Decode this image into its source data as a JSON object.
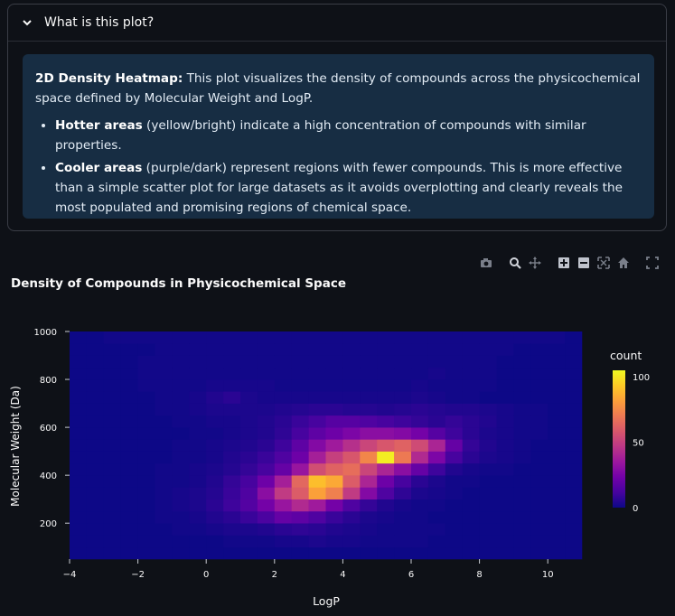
{
  "expander": {
    "title": "What is this plot?"
  },
  "info": {
    "intro_bold": "2D Density Heatmap:",
    "intro_text": " This plot visualizes the density of compounds across the physicochemical space defined by Molecular Weight and LogP.",
    "bullets": [
      {
        "bold": "Hotter areas",
        "text": " (yellow/bright) indicate a high concentration of compounds with similar properties."
      },
      {
        "bold": "Cooler areas",
        "text": " (purple/dark) represent regions with fewer compounds. This is more effective than a simple scatter plot for large datasets as it avoids overplotting and clearly reveals the most populated and promising regions of chemical space."
      }
    ]
  },
  "toolbar": [
    "camera-icon",
    "zoom-icon",
    "pan-icon",
    "zoom-in-icon",
    "zoom-out-icon",
    "autoscale-icon",
    "reset-axes-icon",
    "fullscreen-icon"
  ],
  "chart_data": {
    "type": "heatmap",
    "title": "Density of Compounds in Physicochemical Space",
    "xlabel": "LogP",
    "ylabel": "Molecular Weight (Da)",
    "xlim": [
      -4,
      11
    ],
    "ylim": [
      50,
      1000
    ],
    "xticks": [
      -4,
      -2,
      0,
      2,
      4,
      6,
      8,
      10
    ],
    "yticks": [
      200,
      400,
      600,
      800,
      1000
    ],
    "colorbar_title": "count",
    "colorbar_ticks": [
      0,
      50,
      100
    ],
    "zmax": 105,
    "colorscale": "plasma",
    "x_bin_start": -4,
    "x_bin_size": 0.5,
    "y_bin_start": 50,
    "y_bin_size": 50,
    "z": [
      [
        0,
        0,
        0,
        0,
        0,
        0,
        0,
        0,
        0,
        0,
        0,
        0,
        0,
        0,
        0,
        0,
        0,
        0,
        0,
        0,
        0,
        0,
        0,
        0,
        0,
        0,
        0,
        0,
        0,
        0
      ],
      [
        0,
        0,
        0,
        0,
        0,
        0,
        0,
        0,
        0,
        1,
        1,
        1,
        2,
        2,
        3,
        2,
        2,
        1,
        1,
        1,
        1,
        0,
        0,
        0,
        0,
        0,
        0,
        0,
        0,
        0
      ],
      [
        0,
        0,
        0,
        0,
        0,
        0,
        1,
        1,
        2,
        3,
        3,
        4,
        6,
        7,
        6,
        4,
        3,
        2,
        1,
        1,
        1,
        1,
        0,
        0,
        0,
        0,
        0,
        0,
        0,
        0
      ],
      [
        0,
        0,
        0,
        0,
        0,
        1,
        1,
        2,
        4,
        6,
        9,
        13,
        20,
        18,
        14,
        9,
        6,
        3,
        2,
        1,
        1,
        0,
        0,
        0,
        0,
        0,
        0,
        0,
        0,
        0
      ],
      [
        0,
        0,
        0,
        0,
        0,
        1,
        2,
        3,
        6,
        10,
        15,
        24,
        34,
        42,
        36,
        24,
        14,
        8,
        4,
        2,
        1,
        1,
        0,
        0,
        0,
        0,
        0,
        0,
        0,
        0
      ],
      [
        0,
        0,
        0,
        0,
        0,
        1,
        2,
        3,
        5,
        9,
        14,
        30,
        48,
        60,
        82,
        72,
        48,
        28,
        14,
        7,
        3,
        2,
        1,
        0,
        0,
        0,
        0,
        0,
        0,
        0
      ],
      [
        0,
        0,
        0,
        0,
        0,
        1,
        1,
        2,
        4,
        8,
        12,
        22,
        38,
        64,
        90,
        84,
        60,
        40,
        22,
        12,
        6,
        3,
        1,
        1,
        0,
        0,
        0,
        0,
        0,
        0
      ],
      [
        0,
        0,
        0,
        0,
        0,
        1,
        1,
        2,
        3,
        5,
        8,
        12,
        20,
        34,
        55,
        62,
        66,
        52,
        40,
        30,
        20,
        10,
        4,
        2,
        1,
        1,
        0,
        0,
        0,
        0
      ],
      [
        0,
        0,
        0,
        0,
        0,
        0,
        1,
        1,
        2,
        4,
        6,
        9,
        14,
        22,
        38,
        50,
        58,
        74,
        102,
        70,
        42,
        26,
        12,
        6,
        3,
        2,
        1,
        0,
        0,
        0
      ],
      [
        0,
        0,
        0,
        0,
        0,
        0,
        1,
        1,
        2,
        3,
        4,
        6,
        10,
        18,
        28,
        36,
        44,
        52,
        58,
        62,
        54,
        40,
        20,
        8,
        4,
        2,
        1,
        0,
        0,
        0
      ],
      [
        0,
        0,
        0,
        0,
        0,
        0,
        0,
        1,
        1,
        2,
        3,
        4,
        7,
        12,
        18,
        22,
        26,
        30,
        30,
        28,
        24,
        16,
        10,
        6,
        3,
        2,
        1,
        1,
        0,
        0
      ],
      [
        0,
        0,
        0,
        0,
        0,
        0,
        1,
        1,
        2,
        2,
        3,
        4,
        6,
        9,
        12,
        16,
        16,
        14,
        12,
        10,
        8,
        6,
        8,
        6,
        4,
        2,
        1,
        1,
        0,
        0
      ],
      [
        0,
        0,
        0,
        0,
        0,
        1,
        1,
        2,
        3,
        3,
        3,
        3,
        4,
        5,
        6,
        6,
        5,
        5,
        4,
        5,
        6,
        5,
        4,
        4,
        3,
        2,
        1,
        1,
        0,
        0
      ],
      [
        0,
        0,
        0,
        0,
        0,
        1,
        1,
        2,
        4,
        6,
        3,
        2,
        2,
        2,
        2,
        2,
        2,
        2,
        2,
        2,
        3,
        2,
        1,
        1,
        0,
        0,
        0,
        0,
        0,
        0
      ],
      [
        0,
        0,
        0,
        0,
        1,
        1,
        1,
        1,
        2,
        2,
        2,
        2,
        1,
        1,
        1,
        1,
        1,
        1,
        1,
        1,
        2,
        1,
        1,
        1,
        1,
        0,
        0,
        0,
        0,
        0
      ],
      [
        0,
        0,
        0,
        0,
        1,
        1,
        1,
        1,
        1,
        1,
        1,
        1,
        1,
        1,
        1,
        1,
        1,
        1,
        1,
        1,
        1,
        2,
        1,
        1,
        1,
        0,
        0,
        0,
        0,
        0
      ],
      [
        0,
        0,
        0,
        0,
        1,
        1,
        1,
        1,
        1,
        1,
        1,
        1,
        1,
        1,
        1,
        1,
        1,
        1,
        1,
        1,
        1,
        1,
        1,
        1,
        1,
        0,
        0,
        0,
        0,
        0
      ],
      [
        0,
        0,
        0,
        0,
        0,
        1,
        1,
        1,
        1,
        1,
        1,
        1,
        1,
        1,
        1,
        1,
        1,
        1,
        1,
        1,
        1,
        1,
        1,
        1,
        1,
        1,
        0,
        0,
        0,
        0
      ],
      [
        0,
        0,
        1,
        1,
        1,
        1,
        1,
        1,
        1,
        1,
        1,
        1,
        1,
        1,
        1,
        1,
        1,
        1,
        1,
        1,
        1,
        1,
        1,
        1,
        1,
        1,
        1,
        1,
        1,
        0
      ]
    ]
  }
}
